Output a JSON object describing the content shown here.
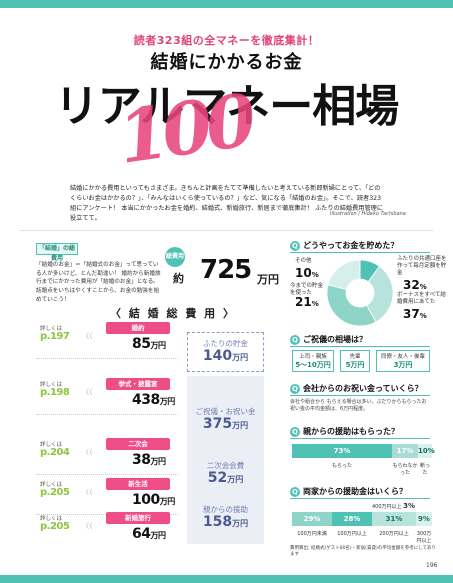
{
  "header": {
    "kicker": "読者323組の全マネーを徹底集計！",
    "subtitle": "結婚にかかるお金",
    "title": "リアルマネー相場",
    "title_number": "100"
  },
  "intro": {
    "text": "結婚にかかる費用といってもさまざま。きちんと計画をたてて準備したいと考えている新郎新婦にとって、「どのくらいお金はかかるの？」、「みんなはいくら使っているの？」など、気になる「結婚のお金」。そこで、読者323組にアンケート！ 本当にかかったお金を婚約、結婚式、新婚旅行、新居まで徹底集計！ ふたりの結婚費用管理に役立てて。",
    "credit": "Illustration / Hideko Tachibana"
  },
  "left_intro": {
    "tag": "「結婚」の総費用",
    "text": "「結婚のお金」＝「結婚式のお金」って思っている人が多いけど、とんだ勘違い！ 婚約から新婚旅行までにかかった費用が「結婚のお金」となる。話題点をいちはやくすことから、お金の勉強を始めていこう！"
  },
  "total": {
    "badge": "総費用",
    "prefix": "約",
    "amount": "725",
    "unit": "万円"
  },
  "kekkon_heading": "〈 結 婚 総 費 用 〉",
  "detail_label": "詳しくは",
  "categories": [
    {
      "page": "p.197",
      "name": "婚約",
      "amount": "85",
      "unit": "万円"
    },
    {
      "page": "p.198",
      "name": "挙式・披露宴",
      "amount": "438",
      "unit": "万円"
    },
    {
      "page": "p.204",
      "name": "二次会",
      "amount": "38",
      "unit": "万円"
    },
    {
      "page": "p.205",
      "name": "新生活",
      "amount": "100",
      "unit": "万円"
    },
    {
      "page": "p.205",
      "name": "新婚旅行",
      "amount": "64",
      "unit": "万円"
    }
  ],
  "funding": [
    {
      "label": "ふたりの貯金",
      "amount": "140",
      "unit": "万円"
    },
    {
      "label": "ご祝儀・お祝い金",
      "amount": "375",
      "unit": "万円"
    },
    {
      "label": "二次会会費",
      "amount": "52",
      "unit": "万円"
    },
    {
      "label": "親からの援助",
      "amount": "158",
      "unit": "万円"
    }
  ],
  "q1": {
    "title": "どうやってお金を貯めた？",
    "slices": [
      {
        "label": "その他",
        "value": 10,
        "color": "#4fc2b5"
      },
      {
        "label": "ふたりの共通口座を作って毎月定額を貯金",
        "value": 32,
        "color": "#b7e3dc"
      },
      {
        "label": "ボーナスをすべて結婚費用にあてた",
        "value": 37,
        "color": "#8fd4c9"
      },
      {
        "label": "今までの貯金を使った",
        "value": 21,
        "color": "#d6efeb"
      }
    ],
    "pct_suffix": "%"
  },
  "q2": {
    "title": "ご祝儀の相場は？",
    "items": [
      {
        "label": "上司・親族",
        "value": "5〜10万円"
      },
      {
        "label": "先輩",
        "value": "5万円"
      },
      {
        "label": "同僚・友人・後輩",
        "value": "3万円"
      }
    ]
  },
  "q3": {
    "title": "会社からのお祝い金っていくら？",
    "text": "会社や組合から もらえる場合は多い。ぶだりからもらったお祝い金の平均金額は、6万円程度。"
  },
  "q4": {
    "title": "親からの援助はもらった？",
    "segments": [
      {
        "label": "もらった",
        "value": "73%",
        "color": "#4fc2b5"
      },
      {
        "label": "もらわなかった",
        "value": "17%",
        "color": "#a8ddd5"
      },
      {
        "label": "断った",
        "value": "10%",
        "color": "#d9f0ec"
      }
    ]
  },
  "q5": {
    "title": "両家からの援助金はいくら？",
    "top_labels": [
      {
        "label": "400万円以上",
        "value": "3%"
      }
    ],
    "segments": [
      {
        "label": "100万円未満",
        "value": "29%",
        "color": "#8fd4c9"
      },
      {
        "label": "100万円以上",
        "value": "28%",
        "color": "#4fc2b5"
      },
      {
        "label": "200万円以上",
        "value": "31%",
        "color": "#b7e3dc"
      },
      {
        "label": "300万円以上",
        "value": "9%",
        "color": "#d9f0ec"
      }
    ]
  },
  "footnote": "費用算出: 結婚式(ゲスト80名)・新居(賃貸)の平均金額を参考にしてあります",
  "page_number": "196"
}
